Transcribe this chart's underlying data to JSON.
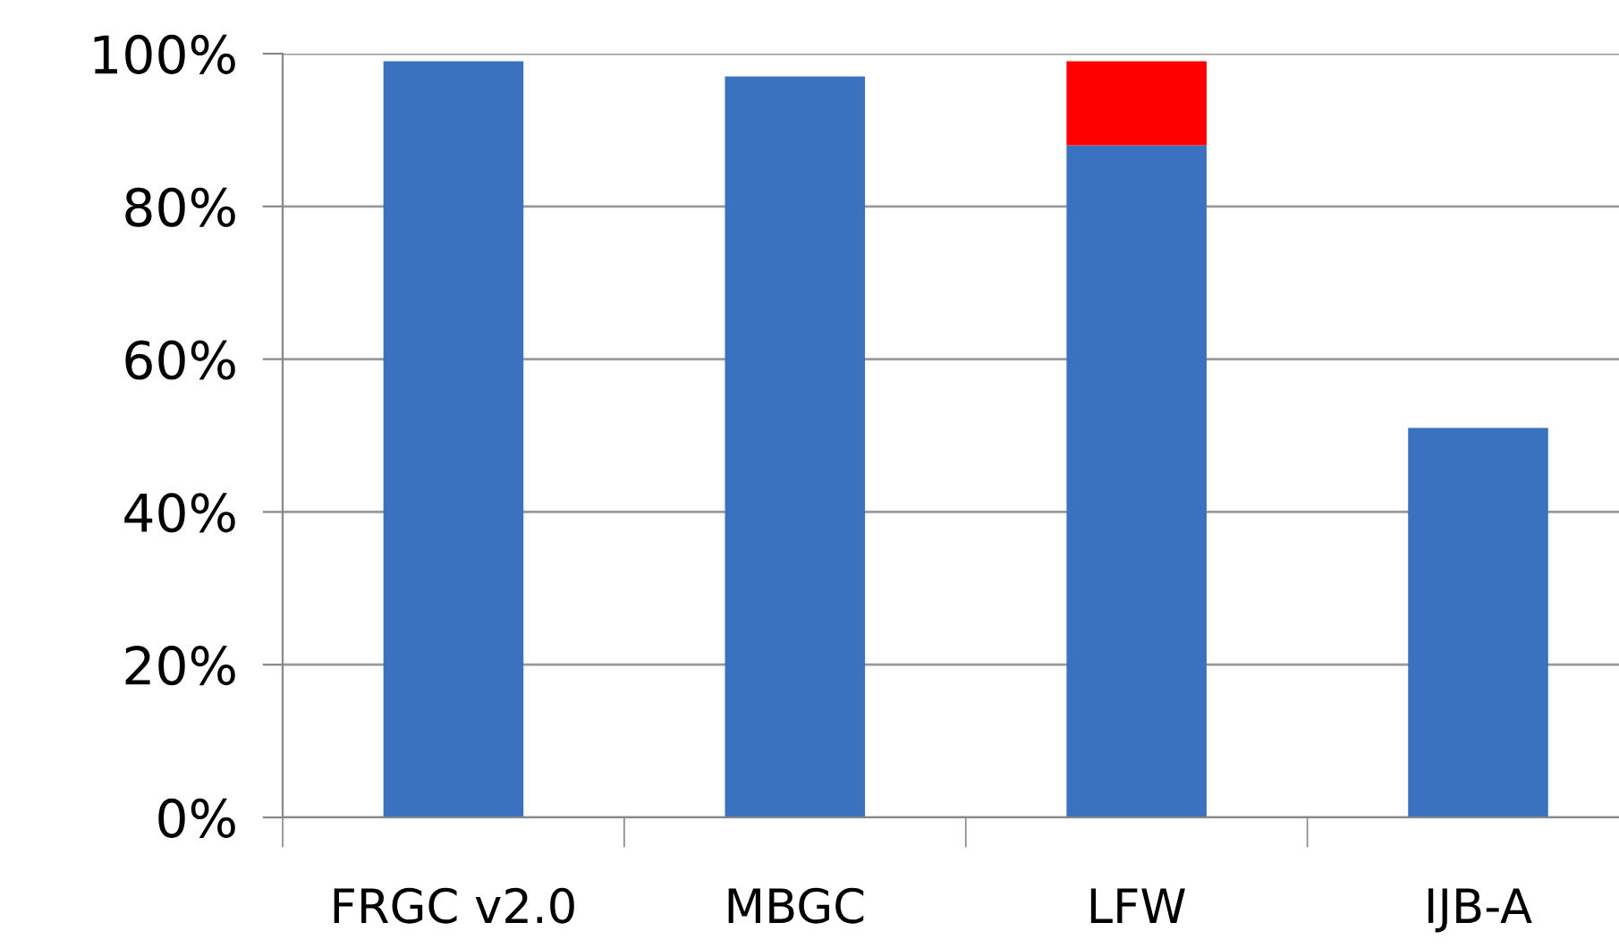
{
  "chart_data": {
    "type": "bar",
    "stacked": true,
    "categories": [
      "FRGC v2.0",
      "MBGC",
      "LFW",
      "IJB-A"
    ],
    "series": [
      {
        "color": "#3a72bf",
        "values": [
          99,
          97,
          88,
          51
        ]
      },
      {
        "color": "#ff0000",
        "values": [
          null,
          null,
          11,
          null
        ]
      }
    ],
    "ylim": [
      0,
      100
    ],
    "yticks": [
      {
        "value": 0,
        "label": "0%"
      },
      {
        "value": 20,
        "label": "20%"
      },
      {
        "value": 40,
        "label": "40%"
      },
      {
        "value": 60,
        "label": "60%"
      },
      {
        "value": 80,
        "label": "80%"
      },
      {
        "value": 100,
        "label": "100%"
      }
    ],
    "grid": "y"
  }
}
